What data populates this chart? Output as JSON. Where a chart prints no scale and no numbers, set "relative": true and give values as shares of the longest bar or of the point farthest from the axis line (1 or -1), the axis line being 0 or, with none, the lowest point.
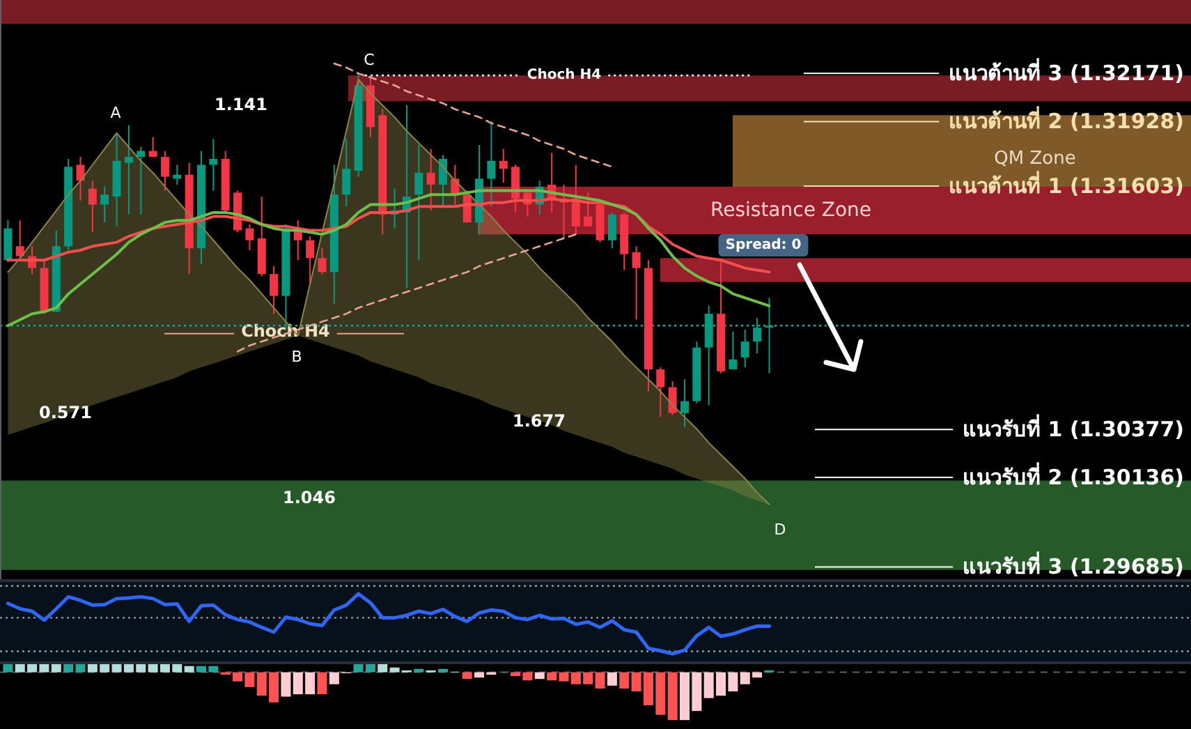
{
  "chart_data": [
    {
      "type": "candlestick",
      "categories": [
        null,
        null,
        null,
        null,
        null,
        null,
        null,
        null,
        null,
        null,
        null,
        null,
        null,
        null,
        null,
        null,
        null,
        null,
        null,
        null,
        null,
        null,
        null,
        null,
        null,
        null,
        null,
        null,
        null,
        null,
        null,
        null,
        null,
        null,
        null,
        null,
        null,
        null,
        null,
        null,
        null,
        null,
        null,
        null,
        null,
        null,
        null,
        null,
        null,
        null,
        null,
        null,
        null,
        null,
        null,
        null,
        null,
        null,
        null,
        null,
        null,
        null,
        null,
        null
      ],
      "ohlc": [
        [
          1.3123,
          1.3143,
          1.3122,
          1.3139
        ],
        [
          1.313,
          1.3143,
          1.3123,
          1.3125
        ],
        [
          1.3125,
          1.313,
          1.3116,
          1.3119
        ],
        [
          1.3119,
          1.3123,
          1.3096,
          1.3097
        ],
        [
          1.3097,
          1.3138,
          1.3097,
          1.313
        ],
        [
          1.313,
          1.3174,
          1.3128,
          1.317
        ],
        [
          1.3171,
          1.3175,
          1.3153,
          1.3163
        ],
        [
          1.3159,
          1.3163,
          1.3137,
          1.3151
        ],
        [
          1.3151,
          1.316,
          1.3142,
          1.3156
        ],
        [
          1.3155,
          1.3187,
          1.314,
          1.3173
        ],
        [
          1.3172,
          1.3191,
          1.3146,
          1.3175
        ],
        [
          1.3175,
          1.318,
          1.3146,
          1.3178
        ],
        [
          1.3178,
          1.3185,
          1.3175,
          1.3175
        ],
        [
          1.3175,
          1.3178,
          1.3158,
          1.3165
        ],
        [
          1.3164,
          1.3171,
          1.3161,
          1.3166
        ],
        [
          1.3166,
          1.3172,
          1.3116,
          1.3129
        ],
        [
          1.3129,
          1.3178,
          1.3121,
          1.3171
        ],
        [
          1.3171,
          1.3184,
          1.3158,
          1.3174
        ],
        [
          1.3174,
          1.3178,
          1.3147,
          1.3148
        ],
        [
          1.3157,
          1.3158,
          1.3137,
          1.3138
        ],
        [
          1.3139,
          1.3141,
          1.3128,
          1.3133
        ],
        [
          1.3134,
          1.3155,
          1.3115,
          1.3116
        ],
        [
          1.3116,
          1.312,
          1.3096,
          1.3105
        ],
        [
          1.3105,
          1.3141,
          1.3088,
          1.3139
        ],
        [
          1.3139,
          1.3143,
          1.3123,
          1.3133
        ],
        [
          1.3133,
          1.3135,
          1.3111,
          1.3124
        ],
        [
          1.3124,
          1.3129,
          1.3116,
          1.3117
        ],
        [
          1.3117,
          1.3171,
          1.3101,
          1.3156
        ],
        [
          1.3156,
          1.3184,
          1.315,
          1.3169
        ],
        [
          1.3168,
          1.3217,
          1.3165,
          1.3211
        ],
        [
          1.3211,
          1.3215,
          1.3185,
          1.319
        ],
        [
          1.3196,
          1.3199,
          1.3136,
          1.3146
        ],
        [
          1.3146,
          1.3159,
          1.3139,
          1.3148
        ],
        [
          1.3147,
          1.3201,
          1.3109,
          1.3155
        ],
        [
          1.3156,
          1.3181,
          1.3123,
          1.3167
        ],
        [
          1.3167,
          1.3179,
          1.3148,
          1.3161
        ],
        [
          1.3161,
          1.3176,
          1.315,
          1.3174
        ],
        [
          1.3164,
          1.3171,
          1.3151,
          1.3156
        ],
        [
          1.3156,
          1.3158,
          1.3142,
          1.3142
        ],
        [
          1.3142,
          1.3181,
          1.3136,
          1.3164
        ],
        [
          1.3164,
          1.3193,
          1.315,
          1.3173
        ],
        [
          1.3173,
          1.3179,
          1.3162,
          1.3169
        ],
        [
          1.317,
          1.3171,
          1.3147,
          1.3154
        ],
        [
          1.3157,
          1.3158,
          1.3145,
          1.3151
        ],
        [
          1.3151,
          1.3163,
          1.3146,
          1.316
        ],
        [
          1.3161,
          1.3177,
          1.3147,
          1.3153
        ],
        [
          1.3154,
          1.3161,
          1.3134,
          1.3152
        ],
        [
          1.3154,
          1.3171,
          1.3136,
          1.314
        ],
        [
          1.3145,
          1.3157,
          1.314,
          1.314
        ],
        [
          1.3151,
          1.3152,
          1.3132,
          1.3133
        ],
        [
          1.3133,
          1.3147,
          1.3129,
          1.3146
        ],
        [
          1.3146,
          1.3147,
          1.3118,
          1.3126
        ],
        [
          1.3127,
          1.313,
          1.3093,
          1.3119
        ],
        [
          1.3119,
          1.3123,
          1.3057,
          1.3068
        ],
        [
          1.3068,
          1.3069,
          1.3044,
          1.3059
        ],
        [
          1.3059,
          1.3062,
          1.3045,
          1.3046
        ],
        [
          1.3046,
          1.3063,
          1.3039,
          1.3052
        ],
        [
          1.3052,
          1.3082,
          1.3051,
          1.3079
        ],
        [
          1.3079,
          1.31,
          1.305,
          1.3096
        ],
        [
          1.3096,
          1.3123,
          1.3066,
          1.3067
        ],
        [
          1.3068,
          1.3087,
          1.3068,
          1.3073
        ],
        [
          1.3074,
          1.3088,
          1.3069,
          1.3082
        ],
        [
          1.3082,
          1.3094,
          1.3076,
          1.3089
        ],
        [
          1.3089,
          1.3104,
          1.3066,
          1.309
        ]
      ],
      "colors": [
        "#089981",
        "#f23645",
        "#f23645",
        "#f23645",
        "#089981",
        "#089981",
        "#f23645",
        "#f23645",
        "#089981",
        "#089981",
        "#089981",
        "#089981",
        "#f23645",
        "#f23645",
        "#089981",
        "#f23645",
        "#089981",
        "#089981",
        "#f23645",
        "#f23645",
        "#f23645",
        "#f23645",
        "#f23645",
        "#089981",
        "#f23645",
        "#f23645",
        "#f23645",
        "#089981",
        "#089981",
        "#089981",
        "#f23645",
        "#f23645",
        "#089981",
        "#089981",
        "#089981",
        "#f23645",
        "#089981",
        "#f23645",
        "#f23645",
        "#089981",
        "#089981",
        "#f23645",
        "#f23645",
        "#f23645",
        "#089981",
        "#f23645",
        "#f23645",
        "#f23645",
        "#f23645",
        "#f23645",
        "#089981",
        "#f23645",
        "#f23645",
        "#f23645",
        "#f23645",
        "#f23645",
        "#089981",
        "#089981",
        "#089981",
        "#f23645",
        "#089981",
        "#089981",
        "#089981",
        "#089981"
      ],
      "ylim": [
        1.2962,
        1.3254
      ],
      "series": [
        {
          "type": "line",
          "color": "#8c8448",
          "values": [
            1.3117,
            1.3124,
            1.3132,
            1.314,
            1.3148,
            1.3156,
            1.3163,
            1.3171,
            1.3179,
            1.3187,
            1.318,
            1.3173,
            1.3167,
            1.316,
            1.3153,
            1.3146,
            1.314,
            1.3133,
            1.3126,
            1.3119,
            1.3113,
            1.3106,
            1.3099,
            1.3092,
            1.3085,
            1.3111,
            1.3137,
            1.3162,
            1.3188,
            1.3214,
            1.3207,
            1.3201,
            1.3195,
            1.3188,
            1.3182,
            1.3176,
            1.317,
            1.3163,
            1.3157,
            1.3151,
            1.3145,
            1.3138,
            1.3132,
            1.3126,
            1.3119,
            1.3113,
            1.3107,
            1.3101,
            1.3094,
            1.3088,
            1.3082,
            1.3075,
            1.3069,
            1.3063,
            1.3057,
            1.305,
            1.3044,
            1.3038,
            1.3031,
            1.3025,
            1.3019,
            1.3013,
            1.3006,
            1.3
          ],
          "upper": [
            1.3117,
            1.3124,
            1.3132,
            1.314,
            1.3148,
            1.3156,
            1.3163,
            1.3171,
            1.3179,
            1.3187,
            1.318,
            1.3173,
            1.3167,
            1.316,
            1.3153,
            1.3146,
            1.314,
            1.3133,
            1.3126,
            1.3119,
            1.3113,
            1.3106,
            1.3099,
            1.3092,
            1.3085,
            1.3111,
            1.3137,
            1.3162,
            1.3188,
            1.3214,
            1.3207,
            1.3201,
            1.3195,
            1.3188,
            1.3182,
            1.3176,
            1.317,
            1.3163,
            1.3157,
            1.3151,
            1.3145,
            1.3138,
            1.3132,
            1.3126,
            1.3119,
            1.3113,
            1.3107,
            1.3101,
            1.3094,
            1.3088,
            1.3082,
            1.3075,
            1.3069,
            1.3063,
            1.3057,
            1.305,
            1.3044,
            1.3038,
            1.3031,
            1.3025,
            1.3019,
            1.3013,
            1.3006,
            1.3
          ],
          "lower": [
            1.3035,
            1.3037,
            1.3039,
            1.3041,
            1.3043,
            1.3046,
            1.3048,
            1.305,
            1.3052,
            1.3054,
            1.3056,
            1.3058,
            1.306,
            1.3062,
            1.3064,
            1.3067,
            1.3069,
            1.3071,
            1.3073,
            1.3075,
            1.3077,
            1.3079,
            1.3081,
            1.3083,
            1.3085,
            1.3083,
            1.3081,
            1.3079,
            1.3077,
            1.3075,
            1.3072,
            1.307,
            1.3068,
            1.3066,
            1.3064,
            1.3061,
            1.3059,
            1.3057,
            1.3055,
            1.3053,
            1.305,
            1.3048,
            1.3046,
            1.3044,
            1.3042,
            1.304,
            1.3037,
            1.3035,
            1.3033,
            1.3031,
            1.3029,
            1.3026,
            1.3024,
            1.3022,
            1.302,
            1.3018,
            1.3015,
            1.3013,
            1.3011,
            1.3009,
            1.3007,
            1.3004,
            1.3002,
            1.3
          ]
        },
        {
          "type": "line",
          "color": "#f44f4f",
          "values": [
            1.3123,
            1.3123,
            1.3123,
            1.3123,
            1.3125,
            1.3127,
            1.3128,
            1.313,
            1.3131,
            1.3132,
            1.3135,
            1.3137,
            1.3139,
            1.314,
            1.3141,
            1.3142,
            1.3143,
            1.3145,
            1.3145,
            1.3144,
            1.3143,
            1.3141,
            1.314,
            1.314,
            1.3139,
            1.3138,
            1.3138,
            1.3139,
            1.314,
            1.3144,
            1.3147,
            1.3147,
            1.3147,
            1.3148,
            1.315,
            1.315,
            1.315,
            1.315,
            1.3151,
            1.3151,
            1.3152,
            1.3152,
            1.3153,
            1.3153,
            1.3153,
            1.3154,
            1.3153,
            1.3153,
            1.3152,
            1.3152,
            1.3151,
            1.315,
            1.3146,
            1.314,
            1.3136,
            1.3131,
            1.3128,
            1.3125,
            1.3124,
            1.3123,
            1.3121,
            1.3119,
            1.3118,
            1.3117
          ]
        },
        {
          "type": "line",
          "color": "#6cc04a",
          "values": [
            1.309,
            1.3093,
            1.3096,
            1.3097,
            1.3099,
            1.3106,
            1.3111,
            1.3116,
            1.3121,
            1.3126,
            1.3132,
            1.3136,
            1.3139,
            1.3142,
            1.3143,
            1.3143,
            1.3145,
            1.3147,
            1.3147,
            1.3146,
            1.3144,
            1.3141,
            1.3139,
            1.3138,
            1.3138,
            1.3137,
            1.3136,
            1.3138,
            1.3141,
            1.3147,
            1.3151,
            1.3151,
            1.3151,
            1.3152,
            1.3154,
            1.3156,
            1.3156,
            1.3156,
            1.3157,
            1.3158,
            1.3158,
            1.3158,
            1.3158,
            1.3158,
            1.3158,
            1.3157,
            1.3156,
            1.3155,
            1.3154,
            1.3153,
            1.3151,
            1.3149,
            1.3146,
            1.3139,
            1.3133,
            1.3125,
            1.3119,
            1.3115,
            1.3112,
            1.311,
            1.3106,
            1.3104,
            1.3102,
            1.31
          ]
        },
        {
          "type": "line",
          "color": "#e8a494",
          "line_style": "dashed",
          "values": [
            null,
            null,
            null,
            null,
            null,
            null,
            null,
            null,
            null,
            null,
            null,
            null,
            null,
            null,
            null,
            null,
            null,
            null,
            null,
            null,
            null,
            null,
            null,
            null,
            null,
            null,
            null,
            1.3222,
            1.322,
            1.3217,
            1.3215,
            1.3213,
            1.3211,
            1.3208,
            1.3206,
            1.3204,
            1.3202,
            1.3199,
            1.3197,
            1.3195,
            1.3192,
            1.319,
            1.3188,
            1.3186,
            1.3183,
            1.3181,
            1.3179,
            1.3176,
            1.3174,
            1.3172,
            1.317,
            null,
            null,
            null,
            null,
            null,
            null,
            null,
            null,
            null,
            null,
            null,
            null,
            null
          ]
        },
        {
          "type": "line",
          "color": "#e8a494",
          "line_style": "dashed",
          "values": [
            null,
            null,
            null,
            null,
            null,
            null,
            null,
            null,
            null,
            null,
            null,
            null,
            null,
            null,
            null,
            null,
            null,
            null,
            null,
            1.3077,
            1.308,
            1.3082,
            1.3084,
            1.3086,
            1.3088,
            1.309,
            1.3092,
            1.3094,
            1.3096,
            1.3099,
            1.3101,
            1.3103,
            1.3105,
            1.3107,
            1.3109,
            1.3111,
            1.3113,
            1.3115,
            1.3117,
            1.312,
            1.3122,
            1.3124,
            1.3126,
            1.3128,
            1.313,
            1.3132,
            1.3134,
            1.3136,
            null,
            null,
            null,
            null,
            null,
            null,
            null,
            null,
            null,
            null,
            null,
            null,
            null,
            null,
            null,
            null
          ]
        }
      ],
      "bands": [
        {
          "axis": "y",
          "from": 1.3242,
          "to": 1.3254,
          "color": "#7a1c24"
        },
        {
          "axis": "y",
          "from": 1.3203,
          "to": 1.3216,
          "color": "#7a1c24"
        },
        {
          "axis": "y",
          "from": 1.3152,
          "to": 1.3196,
          "label": "QM Zone",
          "color": "#7f5a28"
        },
        {
          "axis": "y",
          "from": 1.3136,
          "to": 1.316,
          "label": "Resistance Zone",
          "color": "#9a1f2c"
        },
        {
          "axis": "y",
          "from": 1.3112,
          "to": 1.3124,
          "color": "#9a1f2c"
        },
        {
          "axis": "y",
          "from": 1.2967,
          "to": 1.3012,
          "color": "#275a29"
        }
      ],
      "ref_lines": [
        {
          "axis": "y",
          "value": 1.3216,
          "label": "Choch H4",
          "color": "#ffffff",
          "line_style": "dotted"
        },
        {
          "axis": "y",
          "value": 1.32171,
          "label": "แนวต้านที่ 3 (1.32171)",
          "color": "#ffffff"
        },
        {
          "axis": "y",
          "value": 1.31928,
          "label": "แนวต้านที่ 2 (1.31928)",
          "color": "#f6dfae"
        },
        {
          "axis": "y",
          "value": 1.31603,
          "label": "แนวต้านที่ 1 (1.31603)",
          "color": "#f6dfae"
        },
        {
          "axis": "y",
          "value": 1.30377,
          "label": "แนวรับที่ 1 (1.30377)",
          "color": "#ffffff"
        },
        {
          "axis": "y",
          "value": 1.30136,
          "label": "แนวรับที่ 2 (1.30136)",
          "color": "#ffffff"
        },
        {
          "axis": "y",
          "value": 1.29685,
          "label": "แนวรับที่ 3 (1.29685)",
          "color": "#ffffff"
        },
        {
          "axis": "y",
          "value": 1.3086,
          "label": "Choch H4",
          "color": "#e8a58e"
        },
        {
          "axis": "y",
          "value": 1.309,
          "color": "#26a69a",
          "line_style": "dotted"
        }
      ],
      "annotations": [
        "A",
        "B",
        "C",
        "D",
        "0.571",
        "1.141",
        "1.677",
        "1.046",
        "Spread: 0"
      ]
    },
    {
      "type": "line",
      "categories": [
        null,
        null,
        null,
        null,
        null,
        null,
        null,
        null,
        null,
        null,
        null,
        null,
        null,
        null,
        null,
        null,
        null,
        null,
        null,
        null,
        null,
        null,
        null,
        null,
        null,
        null,
        null,
        null,
        null,
        null,
        null,
        null,
        null,
        null,
        null,
        null,
        null,
        null,
        null,
        null,
        null,
        null,
        null,
        null,
        null,
        null,
        null,
        null,
        null,
        null,
        null,
        null,
        null,
        null,
        null,
        null,
        null,
        null,
        null,
        null,
        null,
        null,
        null,
        null
      ],
      "relative": true,
      "series": [
        {
          "color": "#2f66f5",
          "values": [
            0.84,
            0.75,
            0.71,
            0.56,
            0.75,
            0.95,
            0.89,
            0.81,
            0.82,
            0.92,
            0.93,
            0.95,
            0.92,
            0.82,
            0.83,
            0.54,
            0.8,
            0.81,
            0.65,
            0.57,
            0.53,
            0.44,
            0.36,
            0.61,
            0.57,
            0.5,
            0.47,
            0.73,
            0.81,
            1,
            0.85,
            0.6,
            0.6,
            0.64,
            0.71,
            0.67,
            0.74,
            0.62,
            0.54,
            0.68,
            0.73,
            0.71,
            0.6,
            0.57,
            0.64,
            0.58,
            0.59,
            0.49,
            0.53,
            0.44,
            0.55,
            0.4,
            0.36,
            0.09,
            0.05,
            0,
            0.06,
            0.3,
            0.44,
            0.29,
            0.33,
            0.4,
            0.46,
            0.46
          ]
        }
      ],
      "ref_lines": [
        {
          "axis": "y",
          "value": 1.13,
          "color": "#9598a1",
          "line_style": "dotted"
        },
        {
          "axis": "y",
          "value": 0.6,
          "color": "#9598a1",
          "line_style": "dotted"
        },
        {
          "axis": "y",
          "value": 0.04,
          "color": "#9598a1",
          "line_style": "dotted"
        }
      ]
    },
    {
      "type": "bar",
      "categories": [
        null,
        null,
        null,
        null,
        null,
        null,
        null,
        null,
        null,
        null,
        null,
        null,
        null,
        null,
        null,
        null,
        null,
        null,
        null,
        null,
        null,
        null,
        null,
        null,
        null,
        null,
        null,
        null,
        null,
        null,
        null,
        null,
        null,
        null,
        null,
        null,
        null,
        null,
        null,
        null,
        null,
        null,
        null,
        null,
        null,
        null,
        null,
        null,
        null,
        null,
        null,
        null,
        null,
        null,
        null,
        null,
        null,
        null,
        null,
        null,
        null,
        null,
        null,
        null
      ],
      "relative": true,
      "values": [
        0.19,
        0.19,
        0.19,
        0.19,
        0.19,
        0.19,
        0.19,
        0.19,
        0.19,
        0.19,
        0.19,
        0.19,
        0.19,
        0.19,
        0.19,
        0.13,
        0.13,
        0.13,
        -0.05,
        -0.19,
        -0.31,
        -0.49,
        -0.63,
        -0.51,
        -0.46,
        -0.46,
        -0.46,
        -0.25,
        -0.02,
        0.19,
        0.19,
        0.19,
        0.1,
        0.04,
        0.07,
        0.04,
        0.07,
        0.01,
        -0.14,
        -0.11,
        -0.05,
        0.01,
        -0.08,
        -0.17,
        -0.14,
        -0.17,
        -0.19,
        -0.25,
        -0.25,
        -0.34,
        -0.28,
        -0.34,
        -0.4,
        -0.69,
        -0.89,
        -1,
        -1,
        -0.81,
        -0.54,
        -0.49,
        -0.4,
        -0.25,
        -0.11,
        0.04
      ],
      "colors": [
        "#26a69a",
        "#b2dfdb",
        "#b2dfdb",
        "#b2dfdb",
        "#b2dfdb",
        "#26a69a",
        "#26a69a",
        "#b2dfdb",
        "#b2dfdb",
        "#b2dfdb",
        "#b2dfdb",
        "#b2dfdb",
        "#b2dfdb",
        "#b2dfdb",
        "#b2dfdb",
        "#b2dfdb",
        "#26a69a",
        "#26a69a",
        "#ff5252",
        "#ff5252",
        "#ff5252",
        "#ff5252",
        "#ff5252",
        "#ffcdd2",
        "#ffcdd2",
        "#ffcdd2",
        "#ff5252",
        "#ffcdd2",
        "#ffcdd2",
        "#26a69a",
        "#26a69a",
        "#b2dfdb",
        "#b2dfdb",
        "#b2dfdb",
        "#26a69a",
        "#b2dfdb",
        "#26a69a",
        "#b2dfdb",
        "#ff5252",
        "#ffcdd2",
        "#ffcdd2",
        "#26a69a",
        "#ff5252",
        "#ff5252",
        "#ffcdd2",
        "#ff5252",
        "#ff5252",
        "#ff5252",
        "#ff5252",
        "#ff5252",
        "#ffcdd2",
        "#ff5252",
        "#ff5252",
        "#ff5252",
        "#ff5252",
        "#ff5252",
        "#ffcdd2",
        "#ffcdd2",
        "#ffcdd2",
        "#ffcdd2",
        "#ffcdd2",
        "#ffcdd2",
        "#ffcdd2",
        "#26a69a"
      ],
      "ref_lines": [
        {
          "axis": "y",
          "value": 0,
          "color": "#5d606b",
          "line_style": "dashed"
        }
      ]
    }
  ]
}
